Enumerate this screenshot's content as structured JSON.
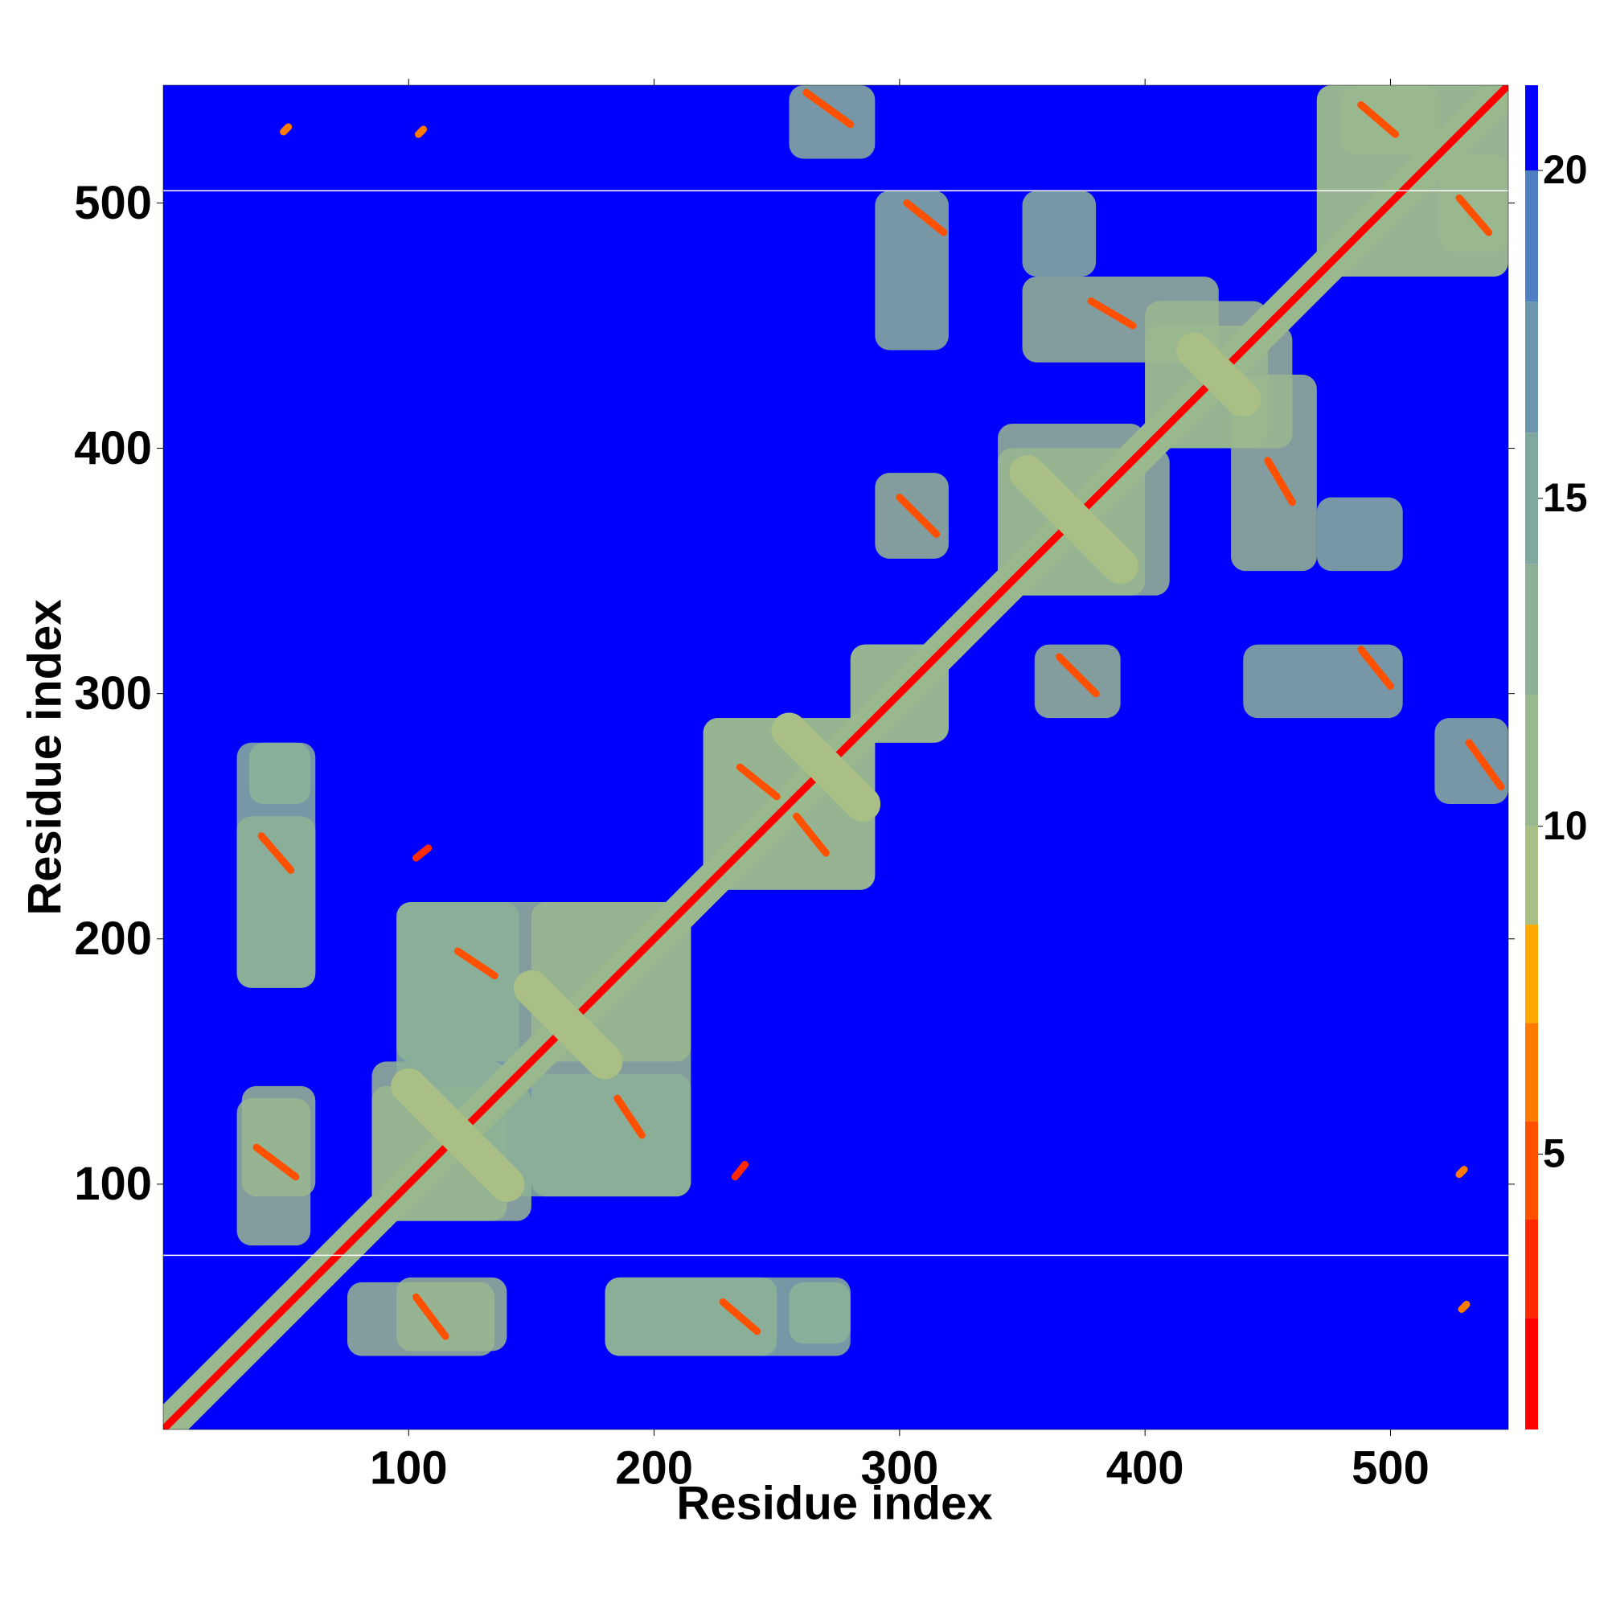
{
  "chart_data": {
    "type": "heatmap",
    "xlabel": "Residue index",
    "ylabel": "Residue index",
    "xlim": [
      0,
      548
    ],
    "ylim": [
      0,
      548
    ],
    "xticks": [
      100,
      200,
      300,
      400,
      500
    ],
    "yticks": [
      100,
      200,
      300,
      400,
      500
    ],
    "symmetric": true,
    "colorbar": {
      "lim": [
        0.8,
        21.3
      ],
      "ticks": [
        5,
        10,
        15,
        20
      ],
      "bands": [
        {
          "max": 2.5,
          "color": "#ff0000"
        },
        {
          "max": 4,
          "color": "#ff2a00"
        },
        {
          "max": 5.5,
          "color": "#ff5000"
        },
        {
          "max": 7,
          "color": "#ff7a00"
        },
        {
          "max": 8.5,
          "color": "#ffa800"
        },
        {
          "max": 10,
          "color": "#a9bf86"
        },
        {
          "max": 12,
          "color": "#9ab88e"
        },
        {
          "max": 14,
          "color": "#8cb196"
        },
        {
          "max": 16,
          "color": "#7fa89f"
        },
        {
          "max": 18,
          "color": "#6a97ae"
        },
        {
          "max": 20,
          "color": "#4f7fc2"
        },
        {
          "max": 21.3,
          "color": "#0000ff"
        }
      ]
    },
    "null_rows": [
      71,
      505
    ],
    "regions": [
      {
        "x": [
          30,
          62
        ],
        "y": [
          180,
          250
        ],
        "value": 12
      },
      {
        "x": [
          32,
          62
        ],
        "y": [
          95,
          140
        ],
        "value": 12
      },
      {
        "x": [
          35,
          60
        ],
        "y": [
          255,
          280
        ],
        "value": 13
      },
      {
        "x": [
          85,
          140
        ],
        "y": [
          85,
          150
        ],
        "value": 12
      },
      {
        "x": [
          95,
          215
        ],
        "y": [
          150,
          215
        ],
        "value": 12
      },
      {
        "x": [
          130,
          215
        ],
        "y": [
          95,
          145
        ],
        "value": 13
      },
      {
        "x": [
          220,
          290
        ],
        "y": [
          220,
          290
        ],
        "value": 12
      },
      {
        "x": [
          280,
          320
        ],
        "y": [
          280,
          320
        ],
        "value": 12
      },
      {
        "x": [
          340,
          400
        ],
        "y": [
          340,
          410
        ],
        "value": 12
      },
      {
        "x": [
          400,
          450
        ],
        "y": [
          400,
          460
        ],
        "value": 12
      },
      {
        "x": [
          290,
          320
        ],
        "y": [
          355,
          390
        ],
        "value": 12
      },
      {
        "x": [
          290,
          320
        ],
        "y": [
          440,
          505
        ],
        "value": 13
      },
      {
        "x": [
          255,
          290
        ],
        "y": [
          518,
          548
        ],
        "value": 13
      },
      {
        "x": [
          350,
          430
        ],
        "y": [
          435,
          470
        ],
        "value": 12
      },
      {
        "x": [
          350,
          380
        ],
        "y": [
          470,
          505
        ],
        "value": 13
      },
      {
        "x": [
          470,
          548
        ],
        "y": [
          470,
          548
        ],
        "value": 12
      },
      {
        "x": [
          480,
          520
        ],
        "y": [
          520,
          548
        ],
        "value": 12
      },
      {
        "x": [
          180,
          280
        ],
        "y": [
          30,
          62
        ],
        "value": 13
      },
      {
        "x": [
          75,
          135
        ],
        "y": [
          30,
          60
        ],
        "value": 12
      }
    ],
    "contacts": [
      {
        "x": [
          1,
          548
        ],
        "y": [
          1,
          548
        ],
        "value": 11
      },
      {
        "x": [
          1,
          548
        ],
        "y": [
          1,
          548
        ],
        "value": 2
      },
      {
        "x": [
          100,
          140
        ],
        "y": [
          140,
          100
        ],
        "value": 9
      },
      {
        "x": [
          255,
          285
        ],
        "y": [
          285,
          255
        ],
        "value": 9
      },
      {
        "x": [
          352,
          390
        ],
        "y": [
          390,
          352
        ],
        "value": 9
      },
      {
        "x": [
          420,
          440
        ],
        "y": [
          440,
          420
        ],
        "value": 9
      },
      {
        "x": [
          150,
          180
        ],
        "y": [
          180,
          150
        ],
        "value": 9
      },
      {
        "x": [
          40,
          52
        ],
        "y": [
          242,
          228
        ],
        "value": 5
      },
      {
        "x": [
          38,
          54
        ],
        "y": [
          115,
          103
        ],
        "value": 5
      },
      {
        "x": [
          300,
          315
        ],
        "y": [
          380,
          365
        ],
        "value": 5
      },
      {
        "x": [
          303,
          318
        ],
        "y": [
          500,
          488
        ],
        "value": 5
      },
      {
        "x": [
          262,
          280
        ],
        "y": [
          545,
          532
        ],
        "value": 5
      },
      {
        "x": [
          378,
          395
        ],
        "y": [
          460,
          450
        ],
        "value": 5
      },
      {
        "x": [
          103,
          108
        ],
        "y": [
          233,
          237
        ],
        "value": 3
      },
      {
        "x": [
          49,
          51
        ],
        "y": [
          529,
          531
        ],
        "value": 6
      },
      {
        "x": [
          104,
          106
        ],
        "y": [
          528,
          530
        ],
        "value": 6
      },
      {
        "x": [
          488,
          502
        ],
        "y": [
          540,
          528
        ],
        "value": 5
      },
      {
        "x": [
          235,
          250
        ],
        "y": [
          270,
          258
        ],
        "value": 5
      },
      {
        "x": [
          120,
          135
        ],
        "y": [
          195,
          185
        ],
        "value": 5
      }
    ]
  }
}
